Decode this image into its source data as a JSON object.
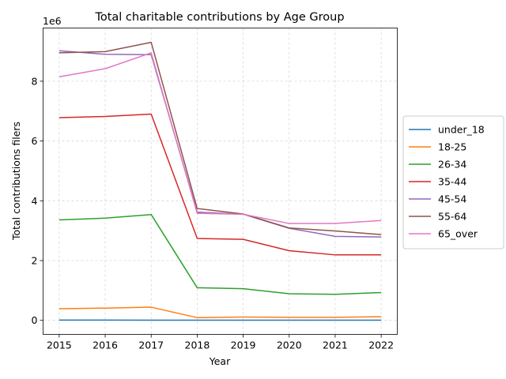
{
  "chart_data": {
    "type": "line",
    "title": "Total charitable contributions by Age Group",
    "xlabel": "Year",
    "ylabel": "Total contributions filers",
    "y_offset_label": "1e6",
    "x": [
      2015,
      2016,
      2017,
      2018,
      2019,
      2020,
      2021,
      2022
    ],
    "x_ticks": [
      "2015",
      "2016",
      "2017",
      "2018",
      "2019",
      "2020",
      "2021",
      "2022"
    ],
    "y_ticks": [
      0,
      2,
      4,
      6,
      8
    ],
    "y_tick_labels": [
      "0",
      "2",
      "4",
      "6",
      "8"
    ],
    "xlim": [
      2014.65,
      2022.35
    ],
    "ylim": [
      -0.47,
      9.78
    ],
    "grid": true,
    "legend_placement": "center right, outside",
    "series": [
      {
        "name": "under_18",
        "color": "#1f77b4",
        "values": [
          0.01,
          0.01,
          0.005,
          0.005,
          0.005,
          0.005,
          0.005,
          0.005
        ]
      },
      {
        "name": "18-25",
        "color": "#ff7f0e",
        "values": [
          0.39,
          0.41,
          0.44,
          0.09,
          0.11,
          0.1,
          0.1,
          0.12
        ]
      },
      {
        "name": "26-34",
        "color": "#2ca02c",
        "values": [
          3.36,
          3.42,
          3.54,
          1.09,
          1.06,
          0.89,
          0.87,
          0.93
        ]
      },
      {
        "name": "35-44",
        "color": "#d62728",
        "values": [
          6.78,
          6.82,
          6.9,
          2.74,
          2.71,
          2.33,
          2.19,
          2.19
        ]
      },
      {
        "name": "45-54",
        "color": "#9467bd",
        "values": [
          9.02,
          8.9,
          8.89,
          3.62,
          3.55,
          3.08,
          2.81,
          2.79
        ]
      },
      {
        "name": "55-64",
        "color": "#8c564b",
        "values": [
          8.95,
          8.99,
          9.3,
          3.74,
          3.56,
          3.09,
          2.99,
          2.87
        ]
      },
      {
        "name": "65_over",
        "color": "#e377c2",
        "values": [
          8.15,
          8.42,
          8.95,
          3.58,
          3.55,
          3.24,
          3.24,
          3.34
        ]
      }
    ]
  }
}
